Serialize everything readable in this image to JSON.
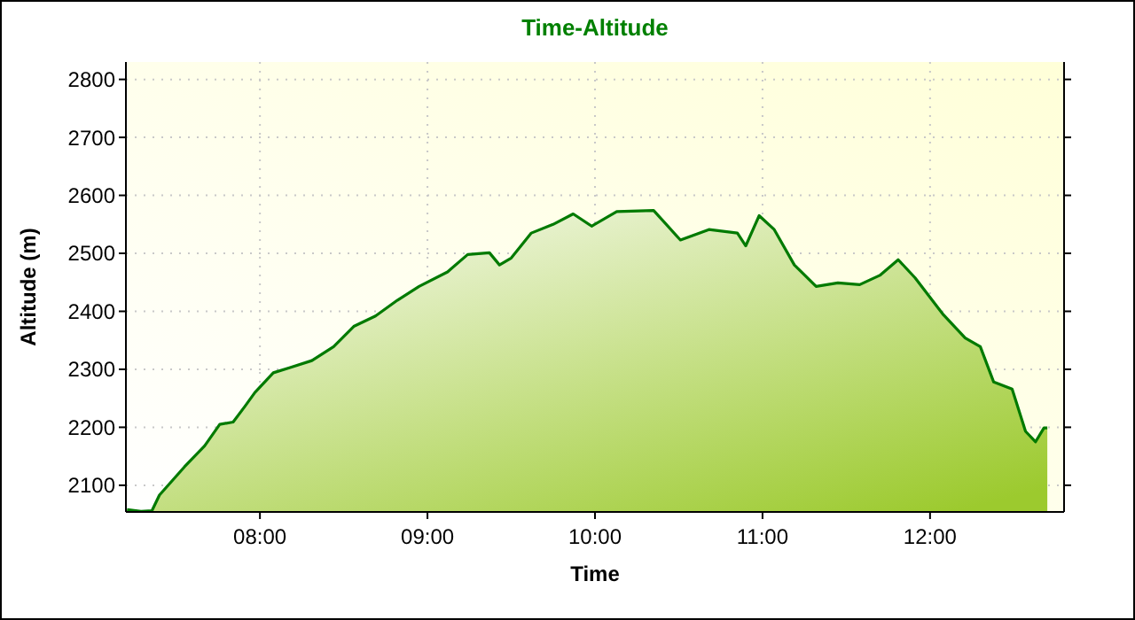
{
  "chart_data": {
    "type": "area",
    "title": "Time-Altitude",
    "xlabel": "Time",
    "ylabel": "Altitude (m)",
    "x": [
      7.207,
      7.29,
      7.355,
      7.4,
      7.55,
      7.67,
      7.76,
      7.84,
      7.91,
      7.97,
      8.08,
      8.18,
      8.31,
      8.44,
      8.56,
      8.69,
      8.82,
      8.95,
      9.12,
      9.24,
      9.37,
      9.43,
      9.5,
      9.62,
      9.75,
      9.87,
      9.98,
      10.13,
      10.35,
      10.51,
      10.68,
      10.85,
      10.9,
      10.98,
      11.07,
      11.19,
      11.32,
      11.45,
      11.58,
      11.7,
      11.81,
      11.91,
      12.08,
      12.21,
      12.3,
      12.38,
      12.49,
      12.57,
      12.63,
      12.68,
      12.7
    ],
    "series": [
      {
        "color": "#007a00",
        "values": [
          2058,
          2055,
          2056,
          2083,
          2132,
          2168,
          2205,
          2209,
          2236,
          2260,
          2294,
          2303,
          2315,
          2339,
          2374,
          2392,
          2419,
          2443,
          2468,
          2498,
          2501,
          2480,
          2492,
          2535,
          2550,
          2568,
          2547,
          2572,
          2574,
          2523,
          2541,
          2535,
          2513,
          2565,
          2541,
          2480,
          2443,
          2449,
          2446,
          2462,
          2489,
          2458,
          2394,
          2354,
          2339,
          2278,
          2266,
          2193,
          2175,
          2199,
          2199
        ]
      }
    ],
    "xlim": [
      7.2,
      12.8
    ],
    "ylim": [
      2054,
      2830
    ],
    "xticks": [
      {
        "value": 8,
        "label": "08:00"
      },
      {
        "value": 9,
        "label": "09:00"
      },
      {
        "value": 10,
        "label": "10:00"
      },
      {
        "value": 11,
        "label": "11:00"
      },
      {
        "value": 12,
        "label": "12:00"
      }
    ],
    "yticks": [
      2100,
      2200,
      2300,
      2400,
      2500,
      2600,
      2700,
      2800
    ],
    "grid": true
  }
}
